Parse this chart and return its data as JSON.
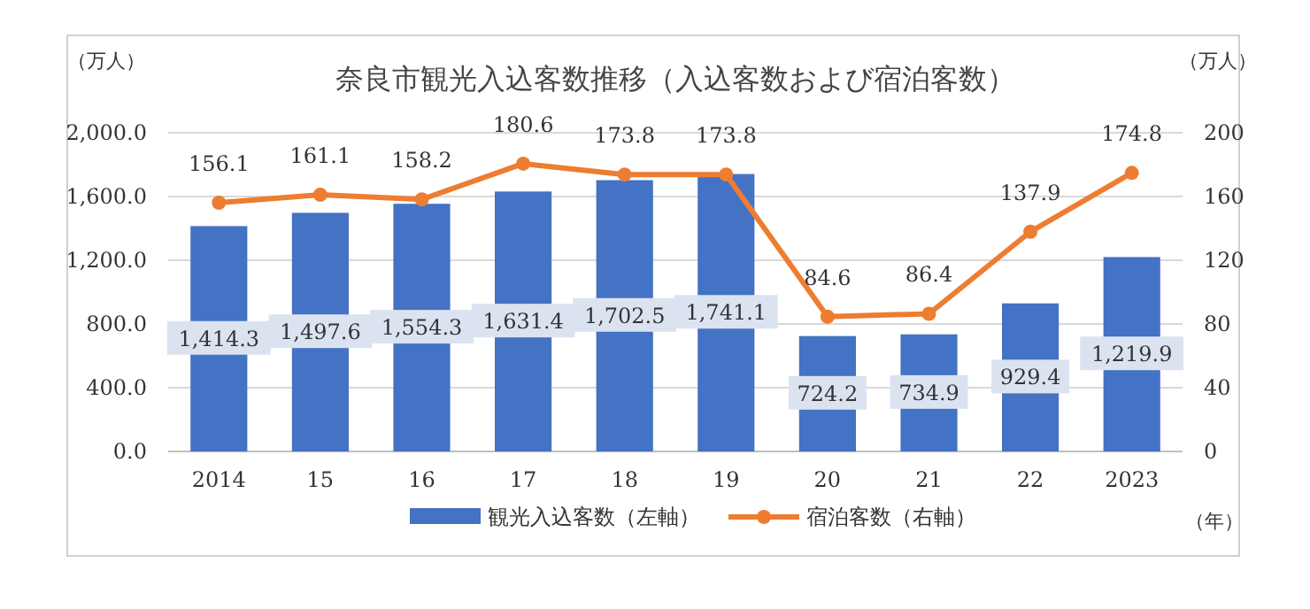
{
  "chart_data": {
    "type": "bar",
    "title": "奈良市観光入込客数推移（入込客数および宿泊客数）",
    "xlabel": "（年）",
    "ylabel": "（万人）",
    "y2label": "（万人）",
    "categories": [
      "2014",
      "15",
      "16",
      "17",
      "18",
      "19",
      "20",
      "21",
      "22",
      "2023"
    ],
    "series": [
      {
        "name": "観光入込客数（左軸）",
        "color": "#4472c4",
        "values": [
          1414.3,
          1497.6,
          1554.3,
          1631.4,
          1702.5,
          1741.1,
          724.2,
          734.9,
          929.4,
          1219.9
        ],
        "value_labels": [
          "1,414.3",
          "1,497.6",
          "1,554.3",
          "1,631.4",
          "1,702.5",
          "1,741.1",
          "724.2",
          "734.9",
          "929.4",
          "1,219.9"
        ]
      },
      {
        "name": "宿泊客数（右軸）",
        "type": "line",
        "axis": "y2",
        "color": "#ed7d31",
        "marker": "circle",
        "values": [
          156.1,
          161.1,
          158.2,
          180.6,
          173.8,
          173.8,
          84.6,
          86.4,
          137.9,
          174.8
        ],
        "value_labels": [
          "156.1",
          "161.1",
          "158.2",
          "180.6",
          "173.8",
          "173.8",
          "84.6",
          "86.4",
          "137.9",
          "174.8"
        ]
      }
    ],
    "ylim": [
      0,
      2000
    ],
    "yticks": [
      {
        "value": 0,
        "label": "0.0"
      },
      {
        "value": 400,
        "label": "400.0"
      },
      {
        "value": 800,
        "label": "800.0"
      },
      {
        "value": 1200,
        "label": "1,200.0"
      },
      {
        "value": 1600,
        "label": "1,600.0"
      },
      {
        "value": 2000,
        "label": "2,000.0"
      }
    ],
    "y2lim": [
      0,
      200
    ],
    "y2ticks": [
      0,
      40,
      80,
      120,
      160,
      200
    ],
    "grid": "y",
    "legend": "bottom"
  }
}
